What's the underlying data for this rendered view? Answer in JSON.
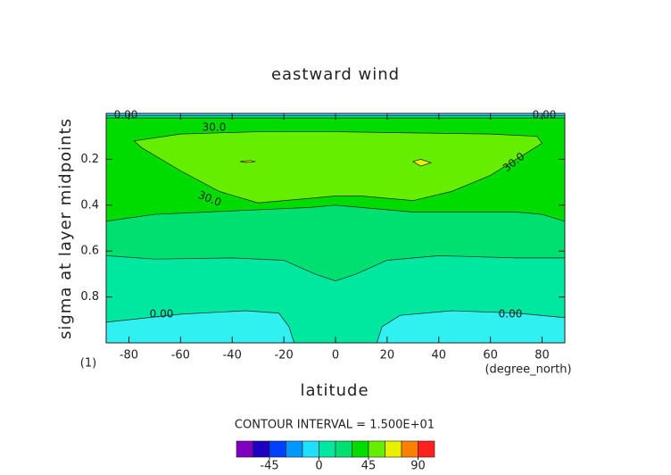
{
  "chart_data": {
    "type": "contour",
    "title": "eastward wind",
    "x_label": "latitude",
    "y_label": "sigma at layer midpoints",
    "x_unit": "(degree_north)",
    "corner_label": "(1)",
    "xlim": [
      -88.8,
      88.8
    ],
    "ylim": [
      1.0,
      0.0
    ],
    "xticks": [
      -80,
      -60,
      -40,
      -20,
      0,
      20,
      40,
      60,
      80
    ],
    "yticks": [
      0.2,
      0.4,
      0.6,
      0.8
    ],
    "background_color": "#00e8a0",
    "regions": [
      {
        "color": "#00e070",
        "points": [
          [
            -88.8,
            0
          ],
          [
            88.8,
            0
          ],
          [
            88.8,
            0.63
          ],
          [
            70,
            0.63
          ],
          [
            40,
            0.62
          ],
          [
            20,
            0.64
          ],
          [
            8,
            0.7
          ],
          [
            0,
            0.73
          ],
          [
            -8,
            0.7
          ],
          [
            -20,
            0.64
          ],
          [
            -40,
            0.63
          ],
          [
            -70,
            0.635
          ],
          [
            -88.8,
            0.62
          ]
        ]
      },
      {
        "color": "#00dc00",
        "points": [
          [
            -88.8,
            0.02
          ],
          [
            88.8,
            0.02
          ],
          [
            88.8,
            0.47
          ],
          [
            80,
            0.44
          ],
          [
            70,
            0.43
          ],
          [
            50,
            0.43
          ],
          [
            30,
            0.43
          ],
          [
            10,
            0.41
          ],
          [
            0,
            0.4
          ],
          [
            -10,
            0.41
          ],
          [
            -30,
            0.42
          ],
          [
            -50,
            0.43
          ],
          [
            -70,
            0.44
          ],
          [
            -88.8,
            0.47
          ]
        ]
      },
      {
        "color": "#66ee00",
        "points": [
          [
            -78,
            0.12
          ],
          [
            -60,
            0.09
          ],
          [
            -30,
            0.08
          ],
          [
            0,
            0.08
          ],
          [
            30,
            0.085
          ],
          [
            60,
            0.09
          ],
          [
            78,
            0.1
          ],
          [
            80,
            0.13
          ],
          [
            70,
            0.2
          ],
          [
            60,
            0.27
          ],
          [
            45,
            0.34
          ],
          [
            30,
            0.38
          ],
          [
            10,
            0.36
          ],
          [
            0,
            0.36
          ],
          [
            -10,
            0.37
          ],
          [
            -30,
            0.39
          ],
          [
            -45,
            0.34
          ],
          [
            -60,
            0.25
          ],
          [
            -75,
            0.15
          ]
        ]
      },
      {
        "color": "#30f0f0",
        "points": [
          [
            -88.8,
            1
          ],
          [
            -88.8,
            0.91
          ],
          [
            -60,
            0.875
          ],
          [
            -35,
            0.86
          ],
          [
            -22,
            0.87
          ],
          [
            -18,
            0.93
          ],
          [
            -16,
            1
          ]
        ]
      },
      {
        "color": "#30f0f0",
        "points": [
          [
            16,
            1
          ],
          [
            18,
            0.93
          ],
          [
            25,
            0.88
          ],
          [
            45,
            0.86
          ],
          [
            70,
            0.87
          ],
          [
            88.8,
            0.89
          ],
          [
            88.8,
            1
          ]
        ]
      },
      {
        "color": "#30c8ff",
        "points": [
          [
            -88.8,
            0
          ],
          [
            88.8,
            0
          ],
          [
            88.8,
            0.01
          ],
          [
            -88.8,
            0.01
          ]
        ]
      },
      {
        "color": "#e8f000",
        "points": [
          [
            30,
            0.21
          ],
          [
            33,
            0.2
          ],
          [
            37,
            0.215
          ],
          [
            33,
            0.23
          ]
        ]
      },
      {
        "color": "#e8f000",
        "points": [
          [
            -37,
            0.21
          ],
          [
            -33,
            0.205
          ],
          [
            -31,
            0.21
          ],
          [
            -35,
            0.214
          ]
        ]
      }
    ],
    "contour_labels": [
      "0.00",
      "0.00",
      "30.0",
      "30.0",
      "30.0",
      "0.00",
      "0.00"
    ],
    "contour_interval_label": "CONTOUR INTERVAL = 1.500E+01",
    "colorbar": {
      "levels": [
        -75,
        -60,
        -45,
        -30,
        -15,
        0,
        15,
        30,
        45,
        60,
        75,
        90,
        105
      ],
      "colors": [
        "#8000c0",
        "#2000c0",
        "#0040ff",
        "#0098ff",
        "#20e0ff",
        "#00e8a0",
        "#00e070",
        "#00dc00",
        "#66ee00",
        "#e8f000",
        "#ff8000",
        "#ff2020"
      ],
      "ticks": [
        -45,
        0,
        45,
        90
      ]
    }
  }
}
